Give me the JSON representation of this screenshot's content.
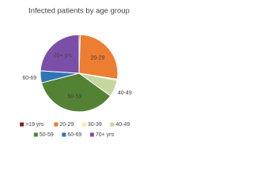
{
  "chart_data": {
    "type": "pie",
    "title": "Infected patients by age group",
    "categories": [
      ">19 yrs",
      "20-29",
      "30-39",
      "40-49",
      "50-59",
      "60-69",
      "70+ yrs"
    ],
    "values": [
      0.5,
      27,
      0.5,
      7,
      36,
      5,
      24
    ],
    "colors": [
      "#8b1a1a",
      "#ed7d31",
      "#fde9a9",
      "#c5d6a0",
      "#548235",
      "#2e75b6",
      "#7b4fa8"
    ],
    "legend": "bottom"
  }
}
